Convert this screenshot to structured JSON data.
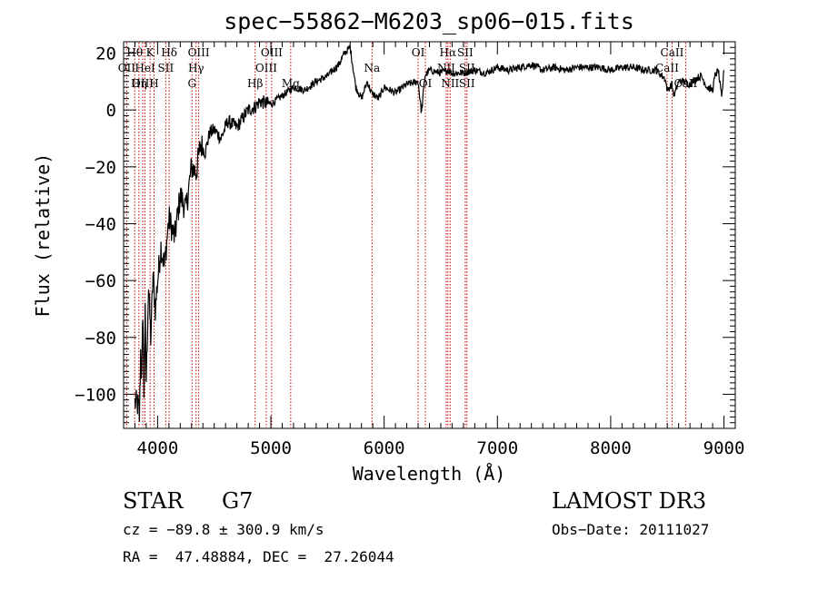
{
  "chart_data": {
    "type": "line",
    "title": "spec−55862−M6203_sp06−015.fits",
    "xlabel": "Wavelength (Å)",
    "ylabel": "Flux (relative)",
    "xlim": [
      3700,
      9100
    ],
    "ylim": [
      -112,
      24
    ],
    "xticks": [
      4000,
      5000,
      6000,
      7000,
      8000,
      9000
    ],
    "xtick_labels": [
      "4000",
      "5000",
      "6000",
      "7000",
      "8000",
      "9000"
    ],
    "yticks": [
      -100,
      -80,
      -60,
      -40,
      -20,
      0,
      20
    ],
    "ytick_labels": [
      "−100",
      "−80",
      "−60",
      "−40",
      "−20",
      "0",
      "20"
    ],
    "series": [
      {
        "name": "spectrum",
        "x": [
          3800,
          3830,
          3840,
          3850,
          3860,
          3870,
          3880,
          3890,
          3900,
          3920,
          3940,
          3960,
          3980,
          4000,
          4030,
          4060,
          4100,
          4150,
          4200,
          4250,
          4300,
          4340,
          4380,
          4420,
          4460,
          4500,
          4560,
          4620,
          4700,
          4800,
          4860,
          4900,
          5000,
          5100,
          5200,
          5300,
          5400,
          5500,
          5550,
          5600,
          5650,
          5700,
          5750,
          5800,
          5850,
          5890,
          5950,
          6000,
          6100,
          6200,
          6300,
          6330,
          6360,
          6400,
          6500,
          6560,
          6600,
          6700,
          6800,
          6900,
          7000,
          7100,
          7200,
          7300,
          7400,
          7500,
          7600,
          7700,
          7800,
          7900,
          8000,
          8100,
          8200,
          8300,
          8400,
          8480,
          8500,
          8540,
          8560,
          8600,
          8650,
          8700,
          8750,
          8800,
          8850,
          8900,
          8920,
          8950,
          8980,
          9000
        ],
        "values": [
          -103,
          -104,
          -108,
          -85,
          -95,
          -70,
          -100,
          -72,
          -95,
          -62,
          -80,
          -58,
          -70,
          -60,
          -48,
          -55,
          -38,
          -45,
          -30,
          -35,
          -20,
          -22,
          -12,
          -15,
          -8,
          -7,
          -10,
          -4,
          -6,
          0,
          1,
          3,
          2,
          5,
          8,
          7,
          10,
          12,
          14,
          16,
          20,
          22,
          8,
          4,
          10,
          6,
          4,
          8,
          6,
          9,
          10,
          -1,
          12,
          14,
          13,
          14,
          13,
          13,
          14,
          13,
          15,
          14,
          15,
          16,
          14,
          15,
          14,
          15,
          15,
          15,
          14,
          15,
          15,
          14,
          14,
          11,
          7,
          9,
          5,
          10,
          10,
          9,
          11,
          12,
          8,
          7,
          12,
          14,
          4,
          14
        ]
      }
    ],
    "emission_lines": [
      {
        "label": "Hθ",
        "x": 3798,
        "row": 0
      },
      {
        "label": "OII",
        "x": 3727,
        "row": 1
      },
      {
        "label": "OIII",
        "x": 3869,
        "row": 2
      },
      {
        "label": "K",
        "x": 3934,
        "row": 0
      },
      {
        "label": "HeI",
        "x": 3889,
        "row": 1
      },
      {
        "label": "Hη",
        "x": 3835,
        "row": 2
      },
      {
        "label": "SII",
        "x": 4072,
        "row": 1
      },
      {
        "label": "H",
        "x": 3969,
        "row": 2
      },
      {
        "label": "Hδ",
        "x": 4102,
        "row": 0
      },
      {
        "label": "OIII",
        "x": 4363,
        "row": 0
      },
      {
        "label": "Hγ",
        "x": 4340,
        "row": 1
      },
      {
        "label": "G",
        "x": 4304,
        "row": 2
      },
      {
        "label": "Hβ",
        "x": 4861,
        "row": 2
      },
      {
        "label": "OIII",
        "x": 5007,
        "row": 0
      },
      {
        "label": "OIII",
        "x": 4959,
        "row": 1
      },
      {
        "label": "Mg",
        "x": 5175,
        "row": 2
      },
      {
        "label": "Na",
        "x": 5893,
        "row": 1
      },
      {
        "label": "OI",
        "x": 6300,
        "row": 0
      },
      {
        "label": "OI",
        "x": 6364,
        "row": 2
      },
      {
        "label": "Hα",
        "x": 6563,
        "row": 0
      },
      {
        "label": "SII",
        "x": 6716,
        "row": 0
      },
      {
        "label": "NII",
        "x": 6548,
        "row": 1
      },
      {
        "label": "NII",
        "x": 6583,
        "row": 2
      },
      {
        "label": "SII",
        "x": 6731,
        "row": 1
      },
      {
        "label": "SII",
        "x": 6731,
        "row": 2
      },
      {
        "label": "CaII",
        "x": 8542,
        "row": 0
      },
      {
        "label": "CaII",
        "x": 8498,
        "row": 1
      },
      {
        "label": "CaII",
        "x": 8662,
        "row": 2
      }
    ],
    "grid": false,
    "legend": "none"
  },
  "info": {
    "class_label": "STAR",
    "subclass_label": "G7",
    "survey": "LAMOST DR3",
    "redshift": "cz = −89.8 ± 300.9 km/s",
    "obs_date": "Obs−Date: 20111027",
    "coords": "RA =  47.48884, DEC =  27.26044"
  },
  "colors": {
    "axes": "#000000",
    "spectrum": "#000000",
    "line_markers": "#cc0000",
    "background": "#ffffff"
  }
}
